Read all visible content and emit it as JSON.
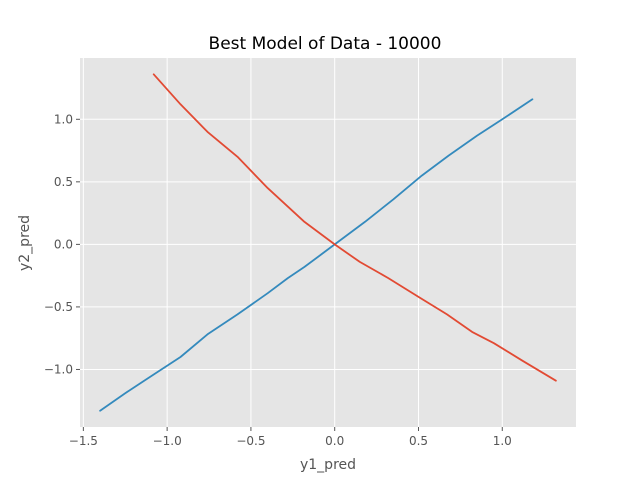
{
  "chart_data": {
    "type": "line",
    "title": "Best Model of Data - 10000",
    "xlabel": "y1_pred",
    "ylabel": "y2_pred",
    "xlim": [
      -1.52,
      1.44
    ],
    "ylim": [
      -1.46,
      1.49
    ],
    "xticks": [
      -1.5,
      -1.0,
      -0.5,
      0.0,
      0.5,
      1.0
    ],
    "xtick_labels": [
      "−1.5",
      "−1.0",
      "−0.5",
      "0.0",
      "0.5",
      "1.0"
    ],
    "yticks": [
      -1.0,
      -0.5,
      0.0,
      0.5,
      1.0
    ],
    "ytick_labels": [
      "−1.0",
      "−0.5",
      "0.0",
      "0.5",
      "1.0"
    ],
    "grid": true,
    "legend": false,
    "series": [
      {
        "color": "#348ABD",
        "x": [
          -1.4,
          -1.25,
          -1.08,
          -0.92,
          -0.76,
          -0.58,
          -0.4,
          -0.28,
          -0.18,
          -0.08,
          0.0,
          0.18,
          0.35,
          0.52,
          0.68,
          0.85,
          1.0,
          1.18
        ],
        "y": [
          -1.33,
          -1.19,
          -1.04,
          -0.9,
          -0.72,
          -0.56,
          -0.39,
          -0.27,
          -0.18,
          -0.08,
          0.0,
          0.18,
          0.36,
          0.55,
          0.71,
          0.87,
          1.0,
          1.16
        ]
      },
      {
        "color": "#E24A33",
        "x": [
          -1.08,
          -0.92,
          -0.76,
          -0.58,
          -0.4,
          -0.18,
          0.0,
          0.15,
          0.32,
          0.5,
          0.67,
          0.82,
          0.95,
          1.12,
          1.32
        ],
        "y": [
          1.36,
          1.12,
          0.9,
          0.7,
          0.45,
          0.18,
          0.0,
          -0.14,
          -0.27,
          -0.42,
          -0.56,
          -0.7,
          -0.79,
          -0.93,
          -1.09
        ]
      }
    ]
  }
}
